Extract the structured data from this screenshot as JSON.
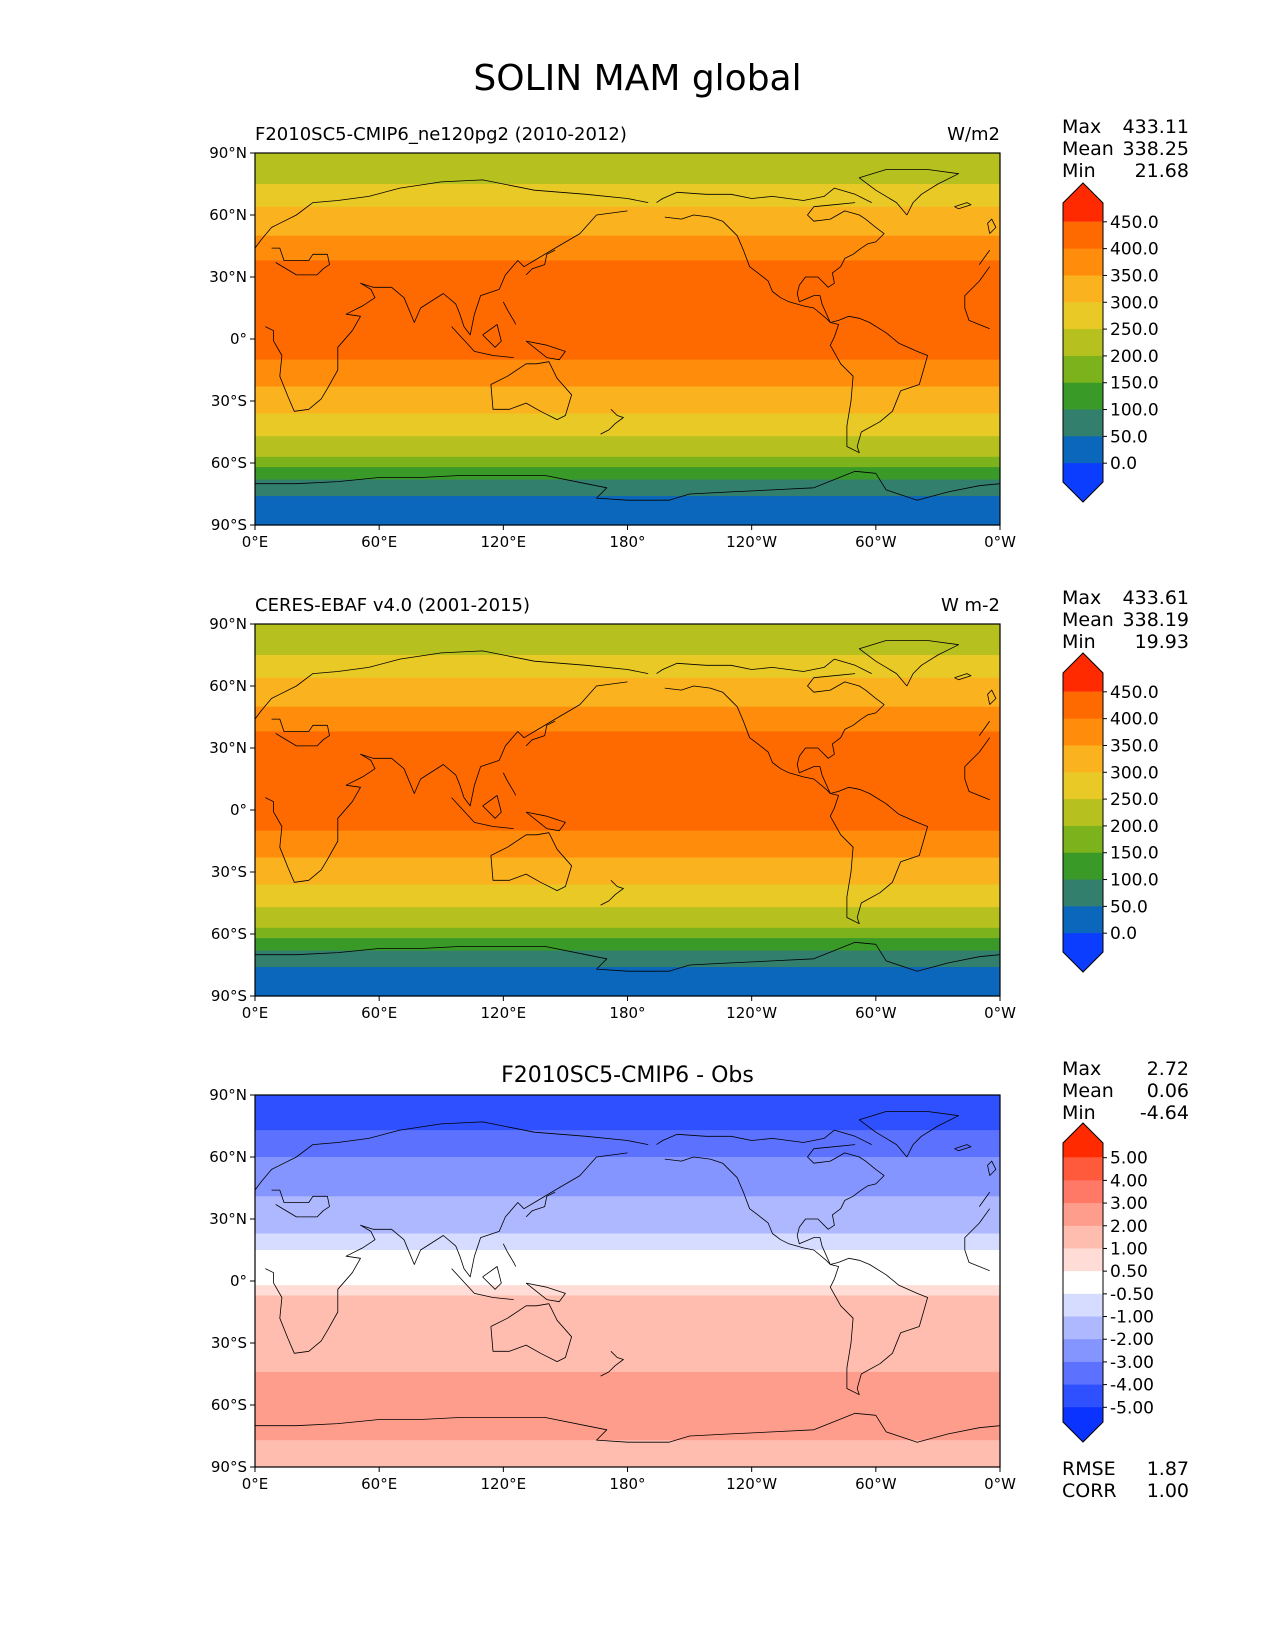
{
  "title": "SOLIN MAM global",
  "x_ticks": [
    "0°E",
    "60°E",
    "120°E",
    "180°",
    "120°W",
    "60°W",
    "0°W"
  ],
  "y_ticks": [
    "90°N",
    "60°N",
    "30°N",
    "0°",
    "30°S",
    "60°S",
    "90°S"
  ],
  "stat_labels": {
    "max": "Max",
    "mean": "Mean",
    "min": "Min",
    "rmse": "RMSE",
    "corr": "CORR"
  },
  "panels": [
    {
      "title_left": "F2010SC5-CMIP6_ne120pg2 (2010-2012)",
      "title_center": "",
      "units": "W/m2",
      "stats": {
        "max": "433.11",
        "mean": "338.25",
        "min": "21.68"
      },
      "colorbar_labels": [
        "450.0",
        "400.0",
        "350.0",
        "300.0",
        "250.0",
        "200.0",
        "150.0",
        "100.0",
        "50.0",
        "0.0"
      ],
      "colorbar_colors": [
        "#ff2a00",
        "#ff6a00",
        "#ff8c0a",
        "#fbb21f",
        "#e8c926",
        "#b6c11f",
        "#7cb31c",
        "#3a9a28",
        "#337f6e",
        "#0a67bc",
        "#0b3dff"
      ]
    },
    {
      "title_left": "CERES-EBAF v4.0 (2001-2015)",
      "title_center": "",
      "units": "W m-2",
      "stats": {
        "max": "433.61",
        "mean": "338.19",
        "min": "19.93"
      },
      "colorbar_labels": [
        "450.0",
        "400.0",
        "350.0",
        "300.0",
        "250.0",
        "200.0",
        "150.0",
        "100.0",
        "50.0",
        "0.0"
      ],
      "colorbar_colors": [
        "#ff2a00",
        "#ff6a00",
        "#ff8c0a",
        "#fbb21f",
        "#e8c926",
        "#b6c11f",
        "#7cb31c",
        "#3a9a28",
        "#337f6e",
        "#0a67bc",
        "#0b3dff"
      ]
    },
    {
      "title_left": "",
      "title_center": "F2010SC5-CMIP6 - Obs",
      "units": "",
      "stats": {
        "max": "2.72",
        "mean": "0.06",
        "min": "-4.64",
        "rmse": "1.87",
        "corr": "1.00"
      },
      "colorbar_labels": [
        "5.00",
        "4.00",
        "3.00",
        "2.00",
        "1.00",
        "0.50",
        "-0.50",
        "-1.00",
        "-2.00",
        "-3.00",
        "-4.00",
        "-5.00"
      ],
      "colorbar_colors": [
        "#ff2a00",
        "#ff5a3c",
        "#ff7966",
        "#ff9d8c",
        "#ffbdb0",
        "#ffdcd6",
        "#ffffff",
        "#d6dcff",
        "#adb8ff",
        "#8595ff",
        "#5c72ff",
        "#2e50ff",
        "#0b33ff"
      ]
    }
  ],
  "map_data": {
    "type": "filled-contour-map",
    "projection": "PlateCarree",
    "central_longitude": 180,
    "lat_range": [
      -90,
      90
    ],
    "lon_range": [
      0,
      360
    ],
    "field_bands": [
      [
        {
          "lat": [
            75,
            90
          ],
          "color": "#b6c11f"
        },
        {
          "lat": [
            64,
            75
          ],
          "color": "#e8c926"
        },
        {
          "lat": [
            50,
            64
          ],
          "color": "#fbb21f"
        },
        {
          "lat": [
            38,
            50
          ],
          "color": "#ff8c0a"
        },
        {
          "lat": [
            -10,
            38
          ],
          "color": "#ff6a00"
        },
        {
          "lat": [
            -23,
            -10
          ],
          "color": "#ff8c0a"
        },
        {
          "lat": [
            -36,
            -23
          ],
          "color": "#fbb21f"
        },
        {
          "lat": [
            -47,
            -36
          ],
          "color": "#e8c926"
        },
        {
          "lat": [
            -57,
            -47
          ],
          "color": "#b6c11f"
        },
        {
          "lat": [
            -62,
            -57
          ],
          "color": "#7cb31c"
        },
        {
          "lat": [
            -68,
            -62
          ],
          "color": "#3a9a28"
        },
        {
          "lat": [
            -76,
            -68
          ],
          "color": "#337f6e"
        },
        {
          "lat": [
            -90,
            -76
          ],
          "color": "#0a67bc"
        }
      ],
      [
        {
          "lat": [
            75,
            90
          ],
          "color": "#b6c11f"
        },
        {
          "lat": [
            64,
            75
          ],
          "color": "#e8c926"
        },
        {
          "lat": [
            50,
            64
          ],
          "color": "#fbb21f"
        },
        {
          "lat": [
            38,
            50
          ],
          "color": "#ff8c0a"
        },
        {
          "lat": [
            -10,
            38
          ],
          "color": "#ff6a00"
        },
        {
          "lat": [
            -23,
            -10
          ],
          "color": "#ff8c0a"
        },
        {
          "lat": [
            -36,
            -23
          ],
          "color": "#fbb21f"
        },
        {
          "lat": [
            -47,
            -36
          ],
          "color": "#e8c926"
        },
        {
          "lat": [
            -57,
            -47
          ],
          "color": "#b6c11f"
        },
        {
          "lat": [
            -62,
            -57
          ],
          "color": "#7cb31c"
        },
        {
          "lat": [
            -68,
            -62
          ],
          "color": "#3a9a28"
        },
        {
          "lat": [
            -76,
            -68
          ],
          "color": "#337f6e"
        },
        {
          "lat": [
            -90,
            -76
          ],
          "color": "#0a67bc"
        }
      ],
      [
        {
          "lat": [
            73,
            90
          ],
          "color": "#2e50ff"
        },
        {
          "lat": [
            60,
            73
          ],
          "color": "#5c72ff"
        },
        {
          "lat": [
            41,
            60
          ],
          "color": "#8595ff"
        },
        {
          "lat": [
            23,
            41
          ],
          "color": "#adb8ff"
        },
        {
          "lat": [
            15,
            23
          ],
          "color": "#d6dcff"
        },
        {
          "lat": [
            -2,
            15
          ],
          "color": "#ffffff"
        },
        {
          "lat": [
            -7,
            -2
          ],
          "color": "#ffdcd6"
        },
        {
          "lat": [
            -44,
            -7
          ],
          "color": "#ffbdb0"
        },
        {
          "lat": [
            -77,
            -44
          ],
          "color": "#ff9d8c"
        },
        {
          "lat": [
            -90,
            -77
          ],
          "color": "#ffbdb0"
        }
      ]
    ]
  }
}
